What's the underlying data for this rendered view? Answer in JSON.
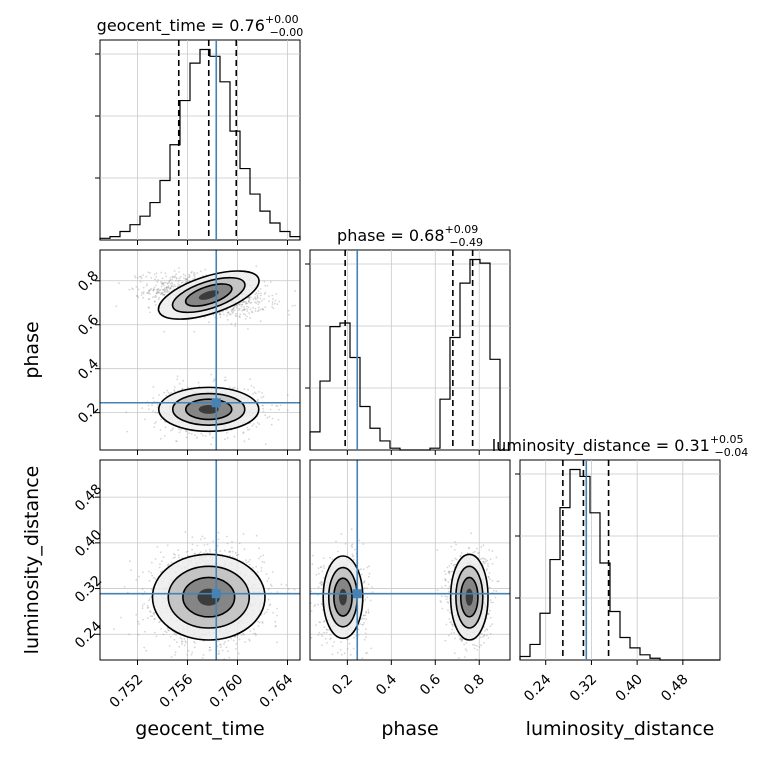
{
  "chart_data": {
    "type": "corner",
    "parameters": [
      "geocent_time",
      "phase",
      "luminosity_distance"
    ],
    "truth": {
      "geocent_time": 0.7583,
      "phase": 0.245,
      "luminosity_distance": 0.311
    },
    "ranges": {
      "geocent_time": [
        0.749,
        0.765
      ],
      "phase": [
        0.03,
        0.94
      ],
      "luminosity_distance": [
        0.195,
        0.545
      ]
    },
    "titles": {
      "geocent_time": {
        "prefix": "geocent_time = ",
        "value": "0.76",
        "plus": "+0.00",
        "minus": "−0.00"
      },
      "phase": {
        "prefix": "phase = ",
        "value": "0.68",
        "plus": "+0.09",
        "minus": "−0.49"
      },
      "luminosity_distance": {
        "prefix": "luminosity_distance = ",
        "value": "0.31",
        "plus": "+0.05",
        "minus": "−0.04"
      }
    },
    "quantiles": {
      "geocent_time": [
        0.7553,
        0.7577,
        0.7599
      ],
      "phase": [
        0.19,
        0.68,
        0.77
      ],
      "luminosity_distance": [
        0.27,
        0.306,
        0.35
      ]
    },
    "ticks": {
      "geocent_time": [
        "0.752",
        "0.756",
        "0.760",
        "0.764"
      ],
      "phase": [
        "0.2",
        "0.4",
        "0.6",
        "0.8"
      ],
      "luminosity_distance": [
        "0.24",
        "0.32",
        "0.40",
        "0.48"
      ]
    },
    "axis_labels": {
      "geocent_time": "geocent_time",
      "phase": "phase",
      "luminosity_distance": "luminosity_distance"
    },
    "histograms": {
      "geocent_time": {
        "start": 0.749,
        "width": 0.0008,
        "counts": [
          1,
          2,
          5,
          9,
          14,
          22,
          35,
          56,
          82,
          104,
          112,
          108,
          93,
          64,
          42,
          27,
          17,
          10,
          5,
          2
        ]
      },
      "phase": {
        "start": 0.03,
        "width": 0.0455,
        "counts": [
          10,
          38,
          68,
          70,
          51,
          24,
          12,
          5,
          1,
          0,
          0,
          0,
          1,
          28,
          62,
          92,
          105,
          103,
          50,
          0
        ]
      },
      "luminosity_distance": {
        "start": 0.195,
        "width": 0.0175,
        "counts": [
          2,
          9,
          27,
          58,
          88,
          110,
          106,
          85,
          56,
          28,
          13,
          7,
          3,
          1,
          0,
          0,
          0,
          0,
          0,
          0
        ]
      }
    },
    "grid": true
  }
}
